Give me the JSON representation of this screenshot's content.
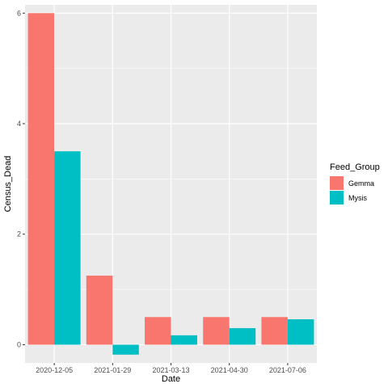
{
  "chart_data": {
    "type": "bar",
    "xlabel": "Date",
    "ylabel": "Census_Dead",
    "categories": [
      "2020-12-05",
      "2021-01-29",
      "2021-03-13",
      "2021-04-30",
      "2021-07-06"
    ],
    "series": [
      {
        "name": "Gemma",
        "color": "#F8766D",
        "values": [
          6.0,
          1.25,
          0.5,
          0.5,
          0.5
        ]
      },
      {
        "name": "Mysis",
        "color": "#00BFC4",
        "values": [
          3.5,
          -0.18,
          0.17,
          0.3,
          0.46
        ]
      }
    ],
    "ylim": [
      -0.33,
      6.15
    ],
    "y_ticks": [
      0,
      2,
      4,
      6
    ],
    "legend": {
      "title": "Feed_Group",
      "placement": "right"
    },
    "grid": true,
    "panel_background": "#EBEBEB",
    "grid_color": "#FFFFFF"
  }
}
